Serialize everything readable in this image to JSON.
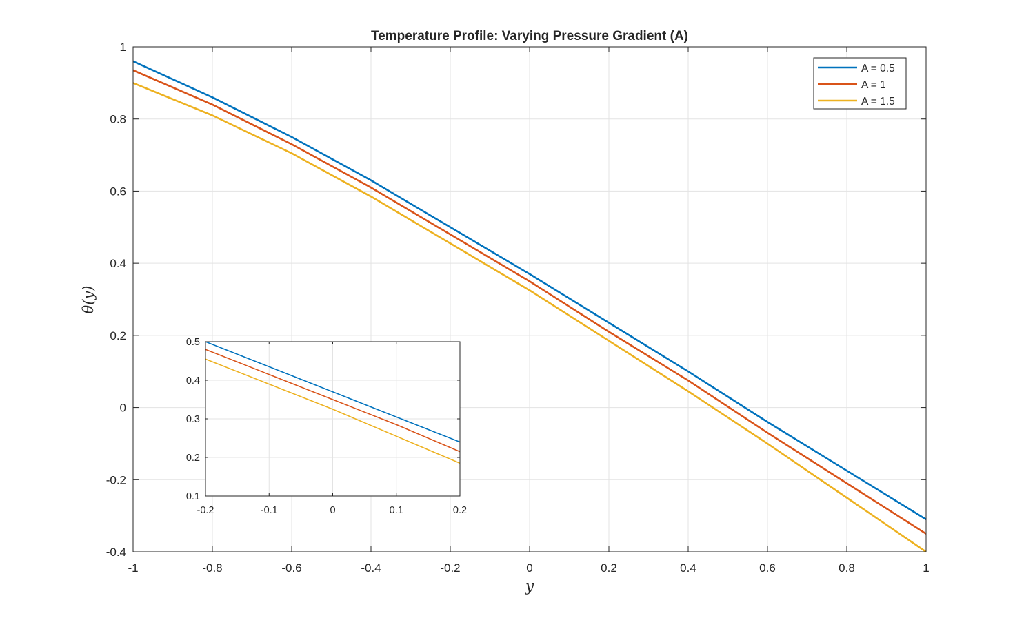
{
  "chart_data": [
    {
      "type": "line",
      "title": "Temperature Profile: Varying Pressure Gradient (A)",
      "xlabel": "y",
      "ylabel": "θ(y)",
      "xlim": [
        -1,
        1
      ],
      "ylim": [
        -0.4,
        1
      ],
      "x_ticks": [
        "-1",
        "-0.8",
        "-0.6",
        "-0.4",
        "-0.2",
        "0",
        "0.2",
        "0.4",
        "0.6",
        "0.8",
        "1"
      ],
      "y_ticks": [
        "-0.4",
        "-0.2",
        "0",
        "0.2",
        "0.4",
        "0.6",
        "0.8",
        "1"
      ],
      "grid": true,
      "legend_position": "top-right",
      "x": [
        -1,
        -0.8,
        -0.6,
        -0.4,
        -0.2,
        0,
        0.2,
        0.4,
        0.6,
        0.8,
        1
      ],
      "series": [
        {
          "name": "A = 0.5",
          "color": "#0072BD",
          "values": [
            0.96,
            0.86,
            0.75,
            0.63,
            0.5,
            0.37,
            0.235,
            0.1,
            -0.04,
            -0.175,
            -0.31
          ]
        },
        {
          "name": "A = 1",
          "color": "#D95319",
          "values": [
            0.935,
            0.84,
            0.73,
            0.61,
            0.48,
            0.35,
            0.21,
            0.075,
            -0.07,
            -0.21,
            -0.35
          ]
        },
        {
          "name": "A = 1.5",
          "color": "#EDB120",
          "values": [
            0.9,
            0.81,
            0.705,
            0.585,
            0.455,
            0.325,
            0.185,
            0.045,
            -0.1,
            -0.25,
            -0.4
          ]
        }
      ]
    },
    {
      "type": "line",
      "title": "",
      "xlabel": "",
      "ylabel": "",
      "xlim": [
        -0.2,
        0.2
      ],
      "ylim": [
        0.1,
        0.5
      ],
      "x_ticks": [
        "-0.2",
        "-0.1",
        "0",
        "0.1",
        "0.2"
      ],
      "y_ticks": [
        "0.1",
        "0.2",
        "0.3",
        "0.4",
        "0.5"
      ],
      "grid": true,
      "x": [
        -0.2,
        -0.1,
        0,
        0.1,
        0.2
      ],
      "series": [
        {
          "color": "#0072BD",
          "values": [
            0.5,
            0.435,
            0.37,
            0.305,
            0.24
          ]
        },
        {
          "color": "#D95319",
          "values": [
            0.48,
            0.415,
            0.35,
            0.285,
            0.215
          ]
        },
        {
          "color": "#EDB120",
          "values": [
            0.455,
            0.39,
            0.325,
            0.255,
            0.185
          ]
        }
      ]
    }
  ]
}
